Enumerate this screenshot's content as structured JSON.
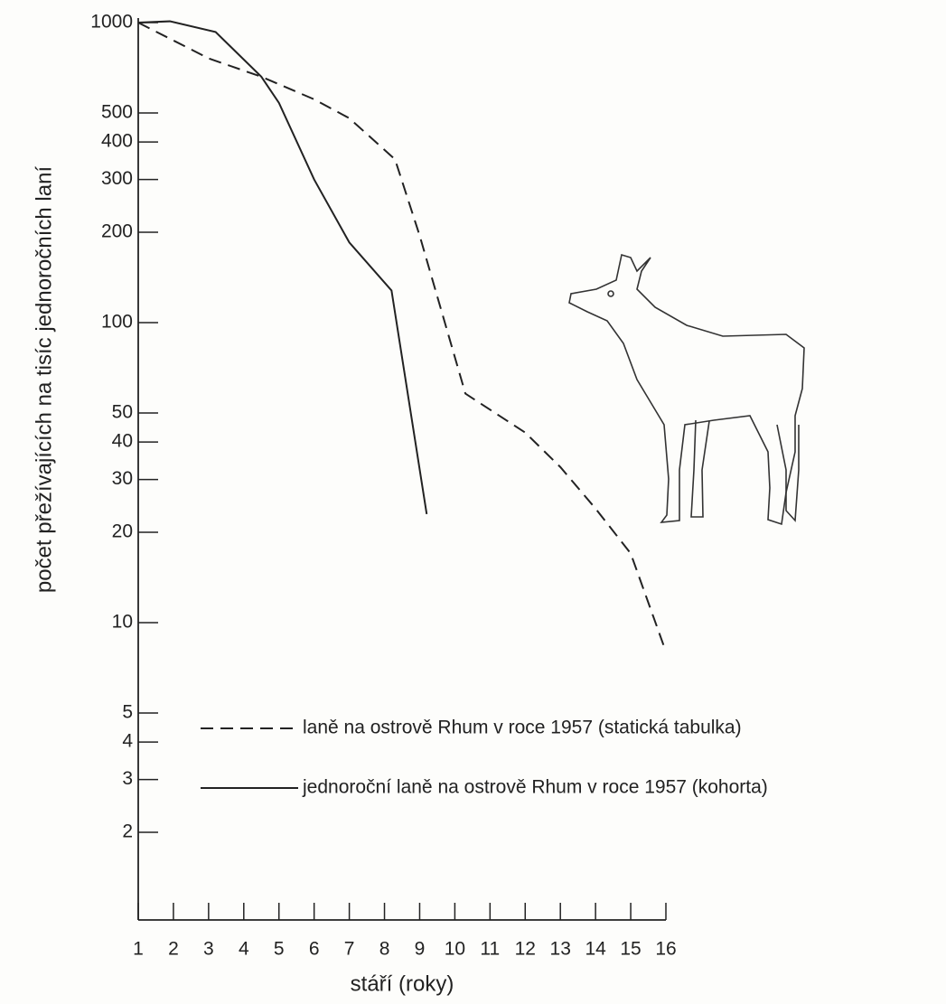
{
  "chart_data": {
    "type": "line",
    "y_label": "počet přežívajících na tisíc jednoročních laní",
    "x_label": "stáří (roky)",
    "log_y": true,
    "xlim": [
      1,
      16
    ],
    "xticks": [
      1,
      2,
      3,
      4,
      5,
      6,
      7,
      8,
      9,
      10,
      11,
      12,
      13,
      14,
      15,
      16
    ],
    "ylim": [
      1,
      1000
    ],
    "yticks": [
      1000,
      500,
      400,
      300,
      200,
      100,
      50,
      40,
      30,
      20,
      10,
      5,
      4,
      3,
      2
    ],
    "series": [
      {
        "name": "laně na ostrově Rhum v roce 1957 (statická tabulka)",
        "color": "#222222",
        "linestyle": "dashed",
        "x": [
          1,
          3,
          4.5,
          6,
          7,
          8.3,
          9,
          10.3,
          12,
          13,
          14,
          15,
          16
        ],
        "values": [
          1000,
          760,
          660,
          555,
          480,
          350,
          195,
          58,
          43,
          33,
          24,
          17,
          8
        ]
      },
      {
        "name": "jednoroční laně na ostrově Rhum v roce 1957 (kohorta)",
        "color": "#222222",
        "linestyle": "solid",
        "x": [
          1,
          1.9,
          3.2,
          4.5,
          5,
          6,
          7,
          8.2,
          9.2
        ],
        "values": [
          1000,
          1010,
          930,
          660,
          540,
          300,
          185,
          128,
          23
        ]
      }
    ]
  }
}
